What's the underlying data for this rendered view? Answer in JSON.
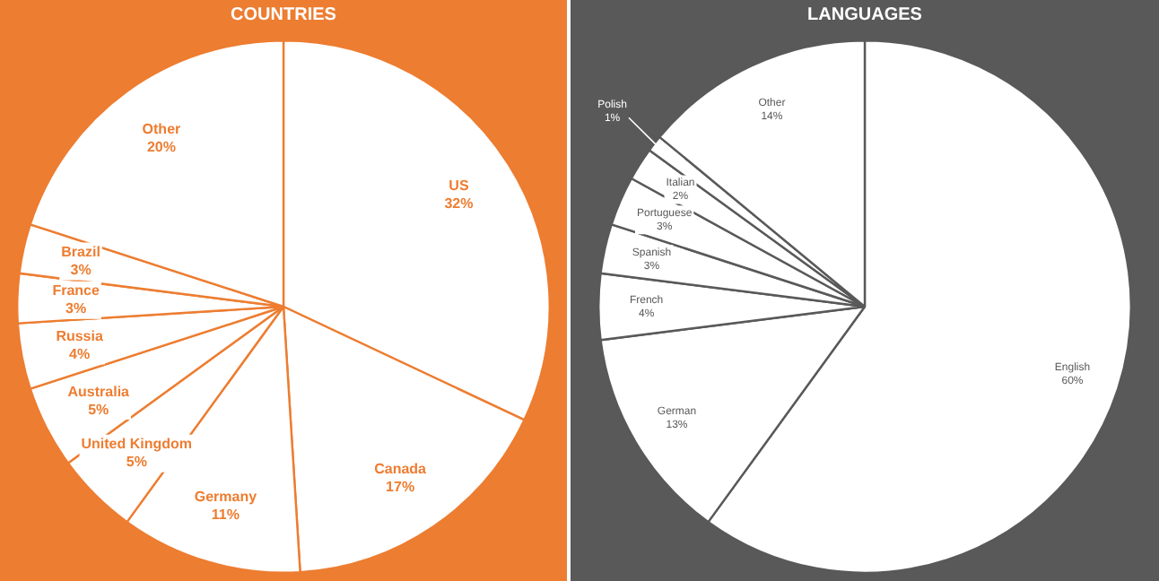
{
  "chart_data": [
    {
      "type": "pie",
      "title": "COUNTRIES",
      "categories": [
        "US",
        "Canada",
        "Germany",
        "United Kingdom",
        "Australia",
        "Russia",
        "France",
        "Brazil",
        "Other"
      ],
      "values": [
        32,
        17,
        11,
        5,
        5,
        4,
        3,
        3,
        20
      ],
      "colors": [
        "#ffffff",
        "#ffffff",
        "#ffffff",
        "#ffffff",
        "#ffffff",
        "#ffffff",
        "#ffffff",
        "#ffffff",
        "#ffffff"
      ],
      "value_labels": [
        "32%",
        "17%",
        "11%",
        "5%",
        "5%",
        "4%",
        "3%",
        "3%",
        "20%"
      ]
    },
    {
      "type": "pie",
      "title": "LANGUAGES",
      "categories": [
        "English",
        "German",
        "French",
        "Spanish",
        "Portuguese",
        "Italian",
        "Polish",
        "Other"
      ],
      "values": [
        60,
        13,
        4,
        3,
        3,
        2,
        1,
        14
      ],
      "colors": [
        "#ffffff",
        "#ffffff",
        "#ffffff",
        "#ffffff",
        "#ffffff",
        "#ffffff",
        "#ffffff",
        "#ffffff"
      ],
      "value_labels": [
        "60%",
        "13%",
        "4%",
        "3%",
        "3%",
        "2%",
        "1%",
        "14%"
      ]
    }
  ]
}
